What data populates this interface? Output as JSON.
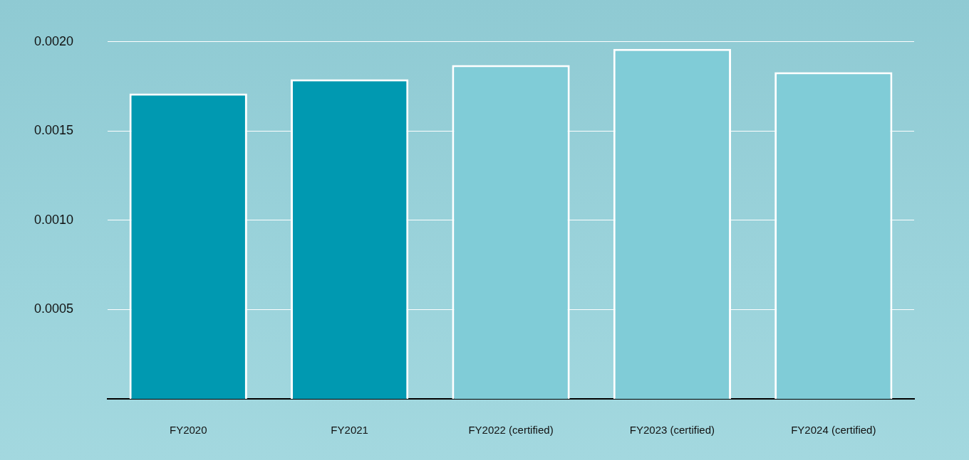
{
  "chart_data": {
    "type": "bar",
    "categories": [
      "FY2020",
      "FY2021",
      "FY2022 (certified)",
      "FY2023 (certified)",
      "FY2024 (certified)"
    ],
    "values": [
      0.00171,
      0.00179,
      0.00187,
      0.00196,
      0.00183
    ],
    "colors": [
      "#0099b1",
      "#0099b1",
      "#80ccd7",
      "#80ccd7",
      "#80ccd7"
    ],
    "ylim": [
      0,
      0.002
    ],
    "yticks": [
      0.0005,
      {
        "value": 0.001,
        "label": "0.0010"
      },
      0.0015,
      {
        "value": 0.002,
        "label": "0.0020"
      }
    ],
    "grid": true
  }
}
